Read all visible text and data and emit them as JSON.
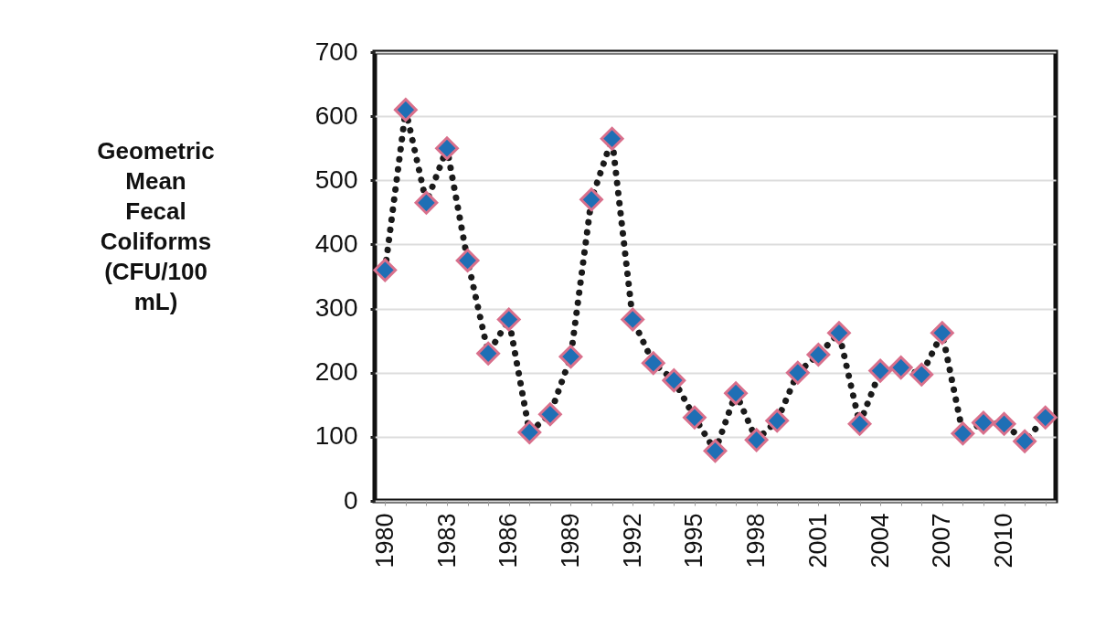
{
  "chart_data": {
    "type": "line",
    "ylabel": "Geometric Mean Fecal Coliforms (CFU/100 mL)",
    "categories": [
      "1980",
      null,
      null,
      "1983",
      null,
      null,
      "1986",
      null,
      null,
      "1989",
      null,
      null,
      "1992",
      null,
      null,
      "1995",
      null,
      null,
      "1998",
      null,
      null,
      "2001",
      null,
      null,
      "2004",
      null,
      null,
      "2007",
      null,
      null,
      "2010",
      null,
      null
    ],
    "series": [
      {
        "color": "#1f6fb5",
        "values": [
          360,
          610,
          465,
          550,
          375,
          230,
          283,
          107,
          135,
          225,
          470,
          565,
          283,
          215,
          188,
          130,
          78,
          168,
          95,
          125,
          200,
          228,
          262,
          120,
          203,
          208,
          197,
          262,
          105,
          122,
          120,
          93,
          130
        ]
      }
    ],
    "ylim": [
      0,
      700
    ],
    "yticks": [
      0,
      100,
      200,
      300,
      400,
      500,
      600,
      700
    ],
    "grid": "y",
    "marker": "diamond",
    "line_style": "dotted"
  }
}
